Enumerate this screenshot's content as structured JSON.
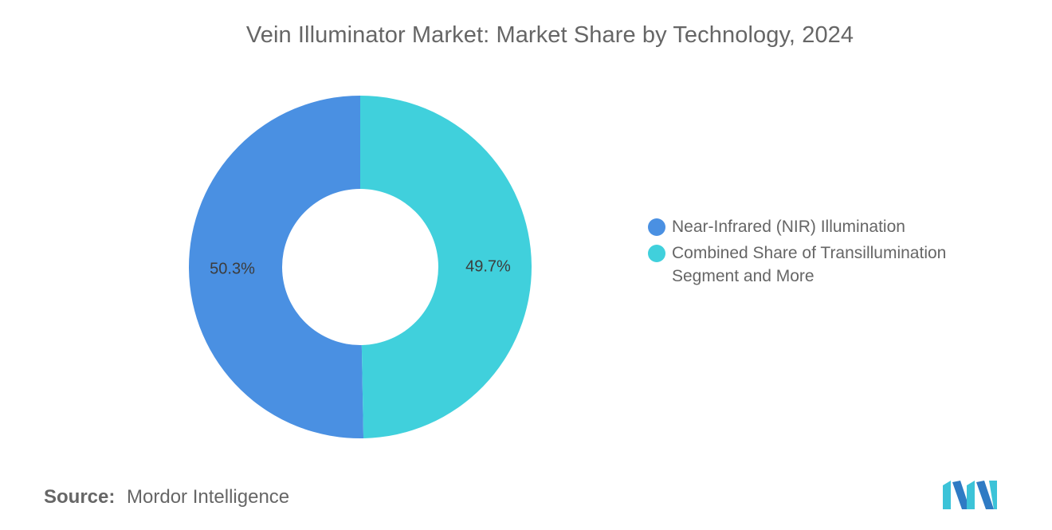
{
  "chart_data": {
    "type": "pie",
    "title": "Vein Illuminator Market: Market Share by Technology, 2024",
    "donut": true,
    "slices": [
      {
        "label": "Near-Infrared (NIR) Illumination",
        "value": 50.3,
        "display": "50.3%",
        "color": "#4a90e2"
      },
      {
        "label": "Combined Share of Transillumination Segment and More",
        "value": 49.7,
        "display": "49.7%",
        "color": "#40d0dc"
      }
    ],
    "legend": "right"
  },
  "source": {
    "label": "Source:",
    "text": "Mordor Intelligence"
  },
  "colors": {
    "primary": "#4a90e2",
    "secondary": "#40d0dc",
    "text": "#666666"
  }
}
